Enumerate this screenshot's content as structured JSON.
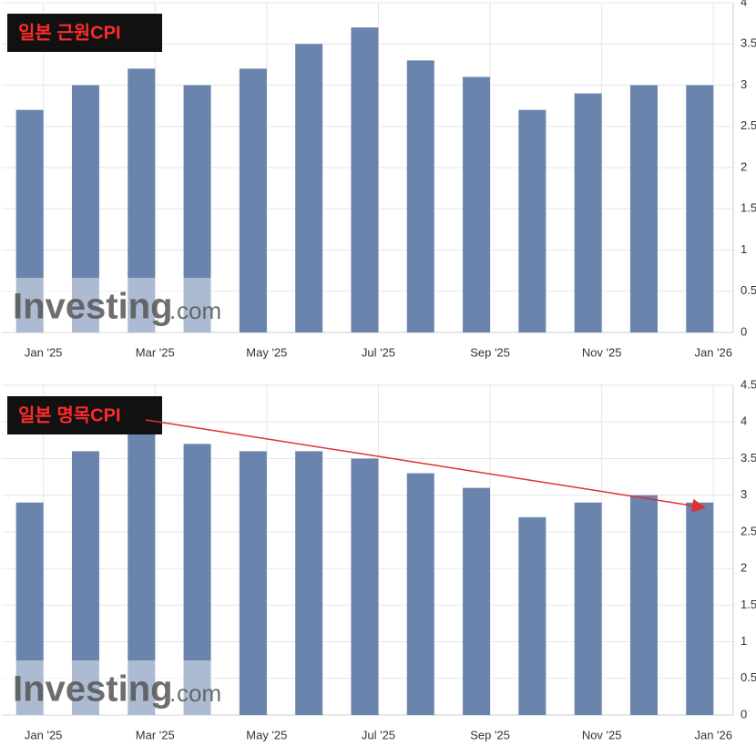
{
  "chart_data": [
    {
      "type": "bar",
      "title": "일본 근원CPI",
      "categories": [
        "Jan '25",
        null,
        "Mar '25",
        null,
        "May '25",
        null,
        "Jul '25",
        null,
        "Sep '25",
        null,
        "Nov '25",
        null,
        "Jan '26"
      ],
      "values": [
        2.7,
        3.0,
        3.2,
        3.0,
        3.2,
        3.5,
        3.7,
        3.3,
        3.1,
        2.7,
        2.9,
        3.0,
        3.0
      ],
      "color": "#6a84ae",
      "ylim": [
        0,
        4
      ],
      "yticks": [
        0,
        0.5,
        1,
        1.5,
        2,
        2.5,
        3,
        3.5,
        4
      ],
      "grid": true,
      "watermark": [
        "Investing",
        "com"
      ]
    },
    {
      "type": "bar",
      "title": "일본 명목CPI",
      "categories": [
        "Jan '25",
        null,
        "Mar '25",
        null,
        "May '25",
        null,
        "Jul '25",
        null,
        "Sep '25",
        null,
        "Nov '25",
        null,
        "Jan '26"
      ],
      "values": [
        2.9,
        3.6,
        4.0,
        3.7,
        3.6,
        3.6,
        3.5,
        3.3,
        3.1,
        2.7,
        2.9,
        3.0,
        2.9
      ],
      "color": "#6a84ae",
      "ylim": [
        0,
        4.5
      ],
      "yticks": [
        0,
        0.5,
        1,
        1.5,
        2,
        2.5,
        3,
        3.5,
        4,
        4.5
      ],
      "grid": true,
      "watermark": [
        "Investing",
        "com"
      ]
    }
  ]
}
